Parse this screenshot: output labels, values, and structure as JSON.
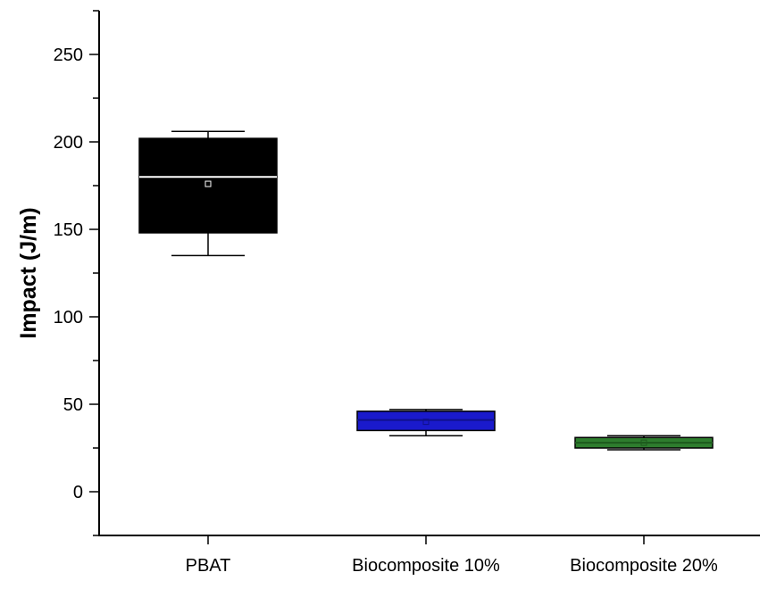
{
  "chart_data": {
    "type": "box",
    "title": "",
    "xlabel": "",
    "ylabel": "Impact (J/m)",
    "ylim": [
      -25,
      275
    ],
    "yticks": [
      0,
      50,
      100,
      150,
      200,
      250
    ],
    "grid": false,
    "categories": [
      "PBAT",
      "Biocomposite 10%",
      "Biocomposite 20%"
    ],
    "boxes": [
      {
        "category": "PBAT",
        "min": 135,
        "q1": 148,
        "median": 180,
        "mean": 176,
        "q3": 202,
        "max": 206,
        "color": "#000000",
        "median_color": "#ffffff"
      },
      {
        "category": "Biocomposite 10%",
        "min": 32,
        "q1": 35,
        "median": 41,
        "mean": 40,
        "q3": 46,
        "max": 47,
        "color": "#1a1acc",
        "median_color": "#10108a"
      },
      {
        "category": "Biocomposite 20%",
        "min": 24,
        "q1": 25,
        "median": 28,
        "mean": 28,
        "q3": 31,
        "max": 32,
        "color": "#2e7d2e",
        "median_color": "#1d5a1d"
      }
    ]
  }
}
